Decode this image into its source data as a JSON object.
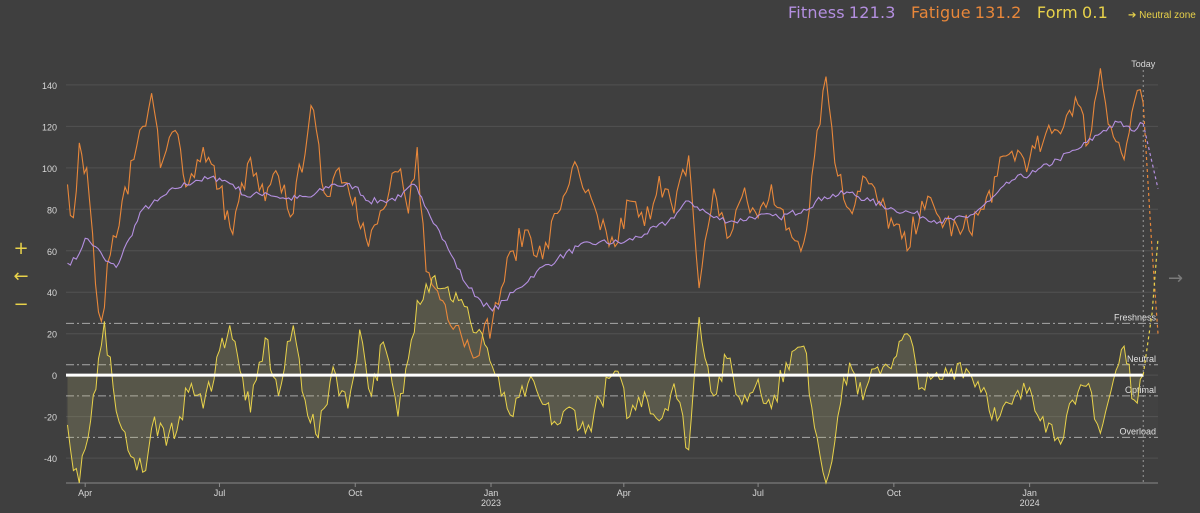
{
  "legend": {
    "fitness_label": "Fitness",
    "fitness_value": "121.3",
    "fatigue_label": "Fatigue",
    "fatigue_value": "131.2",
    "form_label": "Form",
    "form_value": "0.1"
  },
  "controls": {
    "neutral_zone": "➔ Neutral zone",
    "zoom_in": "+",
    "back": "←",
    "zoom_out": "−",
    "forward": "→"
  },
  "colors": {
    "fitness": "#b48fe0",
    "fatigue": "#e8873a",
    "form": "#e8d24a",
    "grid": "#525252",
    "axis_text": "#d8d8d8",
    "zone_line": "#a8a8a8",
    "baseline": "#ffffff"
  },
  "chart_data": {
    "type": "line",
    "ylim": [
      -52,
      152
    ],
    "y_ticks": [
      140,
      120,
      100,
      80,
      60,
      40,
      20,
      0,
      -20,
      -40
    ],
    "x_range": [
      "2022-03-19",
      "2024-03-28"
    ],
    "x_ticks": [
      {
        "date": "2022-04-01",
        "label": "Apr"
      },
      {
        "date": "2022-07-01",
        "label": "Jul"
      },
      {
        "date": "2022-10-01",
        "label": "Oct"
      },
      {
        "date": "2023-01-01",
        "label": "Jan",
        "year": "2023"
      },
      {
        "date": "2023-04-01",
        "label": "Apr"
      },
      {
        "date": "2023-07-01",
        "label": "Jul"
      },
      {
        "date": "2023-10-01",
        "label": "Oct"
      },
      {
        "date": "2024-01-01",
        "label": "Jan",
        "year": "2024"
      }
    ],
    "today": {
      "date": "2024-03-18",
      "label": "Today"
    },
    "zones": [
      {
        "name": "Freshness",
        "value": 25
      },
      {
        "name": "Neutral",
        "value": 5
      },
      {
        "name": "Optimal",
        "value": -10
      },
      {
        "name": "Overload",
        "value": -30
      }
    ],
    "series": [
      {
        "name": "Fitness",
        "key": "fitness",
        "points": [
          [
            "2022-03-20",
            54
          ],
          [
            "2022-03-26",
            56
          ],
          [
            "2022-04-01",
            66
          ],
          [
            "2022-04-08",
            62
          ],
          [
            "2022-04-15",
            55
          ],
          [
            "2022-04-22",
            52
          ],
          [
            "2022-05-01",
            66
          ],
          [
            "2022-05-10",
            80
          ],
          [
            "2022-05-20",
            84
          ],
          [
            "2022-06-01",
            90
          ],
          [
            "2022-06-15",
            94
          ],
          [
            "2022-07-01",
            95
          ],
          [
            "2022-07-10",
            92
          ],
          [
            "2022-07-20",
            86
          ],
          [
            "2022-08-01",
            88
          ],
          [
            "2022-08-15",
            85
          ],
          [
            "2022-09-01",
            86
          ],
          [
            "2022-09-15",
            92
          ],
          [
            "2022-10-01",
            91
          ],
          [
            "2022-10-10",
            84
          ],
          [
            "2022-10-20",
            84
          ],
          [
            "2022-11-01",
            86
          ],
          [
            "2022-11-10",
            92
          ],
          [
            "2022-11-15",
            86
          ],
          [
            "2022-11-25",
            72
          ],
          [
            "2022-12-05",
            58
          ],
          [
            "2022-12-15",
            44
          ],
          [
            "2022-12-25",
            36
          ],
          [
            "2023-01-02",
            31
          ],
          [
            "2023-01-10",
            36
          ],
          [
            "2023-01-20",
            42
          ],
          [
            "2023-02-01",
            50
          ],
          [
            "2023-02-15",
            56
          ],
          [
            "2023-03-01",
            62
          ],
          [
            "2023-03-15",
            64
          ],
          [
            "2023-04-01",
            64
          ],
          [
            "2023-04-15",
            68
          ],
          [
            "2023-05-01",
            74
          ],
          [
            "2023-05-15",
            84
          ],
          [
            "2023-06-01",
            76
          ],
          [
            "2023-06-15",
            74
          ],
          [
            "2023-07-01",
            77
          ],
          [
            "2023-07-15",
            76
          ],
          [
            "2023-08-01",
            80
          ],
          [
            "2023-08-15",
            86
          ],
          [
            "2023-09-01",
            88
          ],
          [
            "2023-09-15",
            84
          ],
          [
            "2023-10-01",
            80
          ],
          [
            "2023-10-15",
            78
          ],
          [
            "2023-11-01",
            74
          ],
          [
            "2023-11-20",
            76
          ],
          [
            "2023-12-05",
            84
          ],
          [
            "2023-12-20",
            94
          ],
          [
            "2024-01-05",
            98
          ],
          [
            "2024-01-20",
            104
          ],
          [
            "2024-02-05",
            110
          ],
          [
            "2024-02-20",
            118
          ],
          [
            "2024-03-01",
            122
          ],
          [
            "2024-03-10",
            118
          ],
          [
            "2024-03-18",
            121.3
          ]
        ]
      },
      {
        "name": "Fatigue",
        "key": "fatigue",
        "points": [
          [
            "2022-03-20",
            92
          ],
          [
            "2022-03-24",
            76
          ],
          [
            "2022-03-28",
            112
          ],
          [
            "2022-04-02",
            100
          ],
          [
            "2022-04-08",
            44
          ],
          [
            "2022-04-12",
            26
          ],
          [
            "2022-04-18",
            58
          ],
          [
            "2022-04-26",
            84
          ],
          [
            "2022-05-04",
            104
          ],
          [
            "2022-05-10",
            120
          ],
          [
            "2022-05-16",
            136
          ],
          [
            "2022-05-22",
            100
          ],
          [
            "2022-06-01",
            118
          ],
          [
            "2022-06-10",
            92
          ],
          [
            "2022-06-20",
            110
          ],
          [
            "2022-07-01",
            90
          ],
          [
            "2022-07-10",
            68
          ],
          [
            "2022-07-20",
            102
          ],
          [
            "2022-08-01",
            84
          ],
          [
            "2022-08-10",
            96
          ],
          [
            "2022-08-20",
            78
          ],
          [
            "2022-09-01",
            130
          ],
          [
            "2022-09-10",
            88
          ],
          [
            "2022-09-20",
            100
          ],
          [
            "2022-10-01",
            86
          ],
          [
            "2022-10-10",
            62
          ],
          [
            "2022-10-20",
            80
          ],
          [
            "2022-10-30",
            98
          ],
          [
            "2022-11-06",
            78
          ],
          [
            "2022-11-12",
            110
          ],
          [
            "2022-11-18",
            50
          ],
          [
            "2022-11-24",
            42
          ],
          [
            "2022-12-01",
            34
          ],
          [
            "2022-12-10",
            24
          ],
          [
            "2022-12-18",
            12
          ],
          [
            "2022-12-26",
            18
          ],
          [
            "2023-01-02",
            26
          ],
          [
            "2023-01-08",
            42
          ],
          [
            "2023-01-16",
            60
          ],
          [
            "2023-01-26",
            70
          ],
          [
            "2023-02-05",
            56
          ],
          [
            "2023-02-15",
            78
          ],
          [
            "2023-02-25",
            100
          ],
          [
            "2023-03-06",
            88
          ],
          [
            "2023-03-16",
            70
          ],
          [
            "2023-03-26",
            62
          ],
          [
            "2023-04-05",
            84
          ],
          [
            "2023-04-15",
            72
          ],
          [
            "2023-04-25",
            96
          ],
          [
            "2023-05-05",
            78
          ],
          [
            "2023-05-15",
            106
          ],
          [
            "2023-05-22",
            42
          ],
          [
            "2023-06-01",
            90
          ],
          [
            "2023-06-10",
            66
          ],
          [
            "2023-06-20",
            86
          ],
          [
            "2023-07-01",
            76
          ],
          [
            "2023-07-10",
            92
          ],
          [
            "2023-07-20",
            70
          ],
          [
            "2023-08-01",
            64
          ],
          [
            "2023-08-10",
            118
          ],
          [
            "2023-08-16",
            144
          ],
          [
            "2023-08-24",
            96
          ],
          [
            "2023-09-01",
            80
          ],
          [
            "2023-09-10",
            96
          ],
          [
            "2023-09-20",
            84
          ],
          [
            "2023-10-01",
            72
          ],
          [
            "2023-10-10",
            60
          ],
          [
            "2023-10-20",
            84
          ],
          [
            "2023-11-01",
            76
          ],
          [
            "2023-11-15",
            68
          ],
          [
            "2023-12-01",
            80
          ],
          [
            "2023-12-10",
            96
          ],
          [
            "2023-12-20",
            108
          ],
          [
            "2024-01-01",
            104
          ],
          [
            "2024-01-10",
            112
          ],
          [
            "2024-01-20",
            118
          ],
          [
            "2024-02-01",
            134
          ],
          [
            "2024-02-10",
            112
          ],
          [
            "2024-02-18",
            148
          ],
          [
            "2024-02-25",
            120
          ],
          [
            "2024-03-05",
            104
          ],
          [
            "2024-03-12",
            132
          ],
          [
            "2024-03-18",
            131.2
          ]
        ]
      },
      {
        "name": "Form",
        "key": "form",
        "points": [
          [
            "2022-03-20",
            -24
          ],
          [
            "2022-03-24",
            -46
          ],
          [
            "2022-03-28",
            -52
          ],
          [
            "2022-04-03",
            -30
          ],
          [
            "2022-04-10",
            8
          ],
          [
            "2022-04-14",
            26
          ],
          [
            "2022-04-20",
            -6
          ],
          [
            "2022-04-26",
            -26
          ],
          [
            "2022-05-04",
            -40
          ],
          [
            "2022-05-12",
            -46
          ],
          [
            "2022-05-18",
            -20
          ],
          [
            "2022-05-26",
            -34
          ],
          [
            "2022-06-04",
            -20
          ],
          [
            "2022-06-12",
            -4
          ],
          [
            "2022-06-20",
            -16
          ],
          [
            "2022-07-01",
            12
          ],
          [
            "2022-07-08",
            24
          ],
          [
            "2022-07-15",
            2
          ],
          [
            "2022-07-22",
            -18
          ],
          [
            "2022-08-01",
            18
          ],
          [
            "2022-08-10",
            -10
          ],
          [
            "2022-08-20",
            24
          ],
          [
            "2022-08-28",
            -12
          ],
          [
            "2022-09-06",
            -30
          ],
          [
            "2022-09-16",
            4
          ],
          [
            "2022-09-26",
            -16
          ],
          [
            "2022-10-04",
            22
          ],
          [
            "2022-10-12",
            -10
          ],
          [
            "2022-10-20",
            16
          ],
          [
            "2022-10-30",
            -20
          ],
          [
            "2022-11-06",
            8
          ],
          [
            "2022-11-12",
            36
          ],
          [
            "2022-11-18",
            44
          ],
          [
            "2022-11-24",
            48
          ],
          [
            "2022-12-01",
            42
          ],
          [
            "2022-12-10",
            36
          ],
          [
            "2022-12-18",
            26
          ],
          [
            "2022-12-26",
            20
          ],
          [
            "2023-01-02",
            4
          ],
          [
            "2023-01-08",
            -10
          ],
          [
            "2023-01-16",
            -20
          ],
          [
            "2023-01-26",
            -4
          ],
          [
            "2023-02-05",
            -14
          ],
          [
            "2023-02-15",
            -24
          ],
          [
            "2023-02-25",
            -16
          ],
          [
            "2023-03-06",
            -28
          ],
          [
            "2023-03-16",
            -12
          ],
          [
            "2023-03-26",
            2
          ],
          [
            "2023-04-05",
            -20
          ],
          [
            "2023-04-15",
            -8
          ],
          [
            "2023-04-25",
            -22
          ],
          [
            "2023-05-05",
            -4
          ],
          [
            "2023-05-15",
            -36
          ],
          [
            "2023-05-22",
            28
          ],
          [
            "2023-06-01",
            -10
          ],
          [
            "2023-06-10",
            8
          ],
          [
            "2023-06-20",
            -14
          ],
          [
            "2023-07-01",
            -2
          ],
          [
            "2023-07-10",
            -16
          ],
          [
            "2023-07-20",
            6
          ],
          [
            "2023-08-01",
            14
          ],
          [
            "2023-08-10",
            -30
          ],
          [
            "2023-08-16",
            -52
          ],
          [
            "2023-08-24",
            -20
          ],
          [
            "2023-09-01",
            6
          ],
          [
            "2023-09-10",
            -12
          ],
          [
            "2023-09-20",
            4
          ],
          [
            "2023-10-01",
            8
          ],
          [
            "2023-10-10",
            20
          ],
          [
            "2023-10-20",
            -6
          ],
          [
            "2023-11-01",
            -2
          ],
          [
            "2023-11-15",
            6
          ],
          [
            "2023-12-01",
            -6
          ],
          [
            "2023-12-10",
            -22
          ],
          [
            "2023-12-20",
            -14
          ],
          [
            "2024-01-01",
            -6
          ],
          [
            "2024-01-10",
            -20
          ],
          [
            "2024-01-20",
            -30
          ],
          [
            "2024-02-01",
            -14
          ],
          [
            "2024-02-10",
            -4
          ],
          [
            "2024-02-18",
            -28
          ],
          [
            "2024-02-25",
            -8
          ],
          [
            "2024-03-05",
            14
          ],
          [
            "2024-03-12",
            -12
          ],
          [
            "2024-03-18",
            0.1
          ]
        ]
      }
    ],
    "projection": [
      {
        "series": "fitness",
        "points": [
          [
            "2024-03-18",
            121.3
          ],
          [
            "2024-03-28",
            90
          ]
        ]
      },
      {
        "series": "fatigue",
        "points": [
          [
            "2024-03-18",
            131.2
          ],
          [
            "2024-03-24",
            60
          ],
          [
            "2024-03-28",
            20
          ]
        ]
      },
      {
        "series": "form",
        "points": [
          [
            "2024-03-18",
            0.1
          ],
          [
            "2024-03-24",
            30
          ],
          [
            "2024-03-28",
            66
          ]
        ]
      }
    ]
  }
}
